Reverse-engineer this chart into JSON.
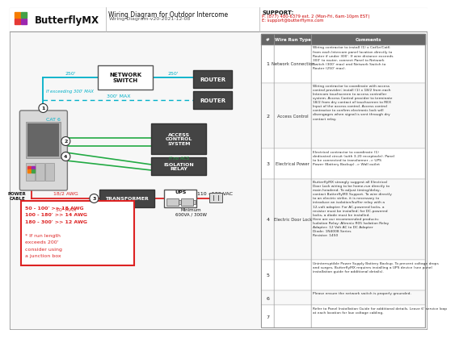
{
  "title": "Wiring Diagram for Outdoor Intercome",
  "subtitle": "Wiring-Diagram-v20-2021-12-08",
  "support_label": "SUPPORT:",
  "support_phone": "P: (877) 480-6379 ext. 2 (Mon-Fri, 6am-10pm EST)",
  "support_email": "E: support@butterflymx.com",
  "bg_color": "#ffffff",
  "cyan": "#00b0c8",
  "green": "#22aa44",
  "red": "#dd2222",
  "dark": "#333333",
  "gray_box": "#555555",
  "light_gray": "#f0f0f0",
  "table_hdr_bg": "#666666",
  "wire_run_rows": [
    {
      "num": "1",
      "type": "Network Connection",
      "comment": "Wiring contractor to install (1) x Cat5e/Cat6\nfrom each Intercom panel location directly to\nRouter if under 300'. If wire distance exceeds\n300' to router, connect Panel to Network\nSwitch (300' max) and Network Switch to\nRouter (250' max)."
    },
    {
      "num": "2",
      "type": "Access Control",
      "comment": "Wiring contractor to coordinate with access\ncontrol provider; install (1) x 18/2 from each\nIntercom touchscreen to access controller\nsystem. Access Control provider to terminate\n18/2 from dry contact of touchscreen to REX\nInput of the access control. Access control\ncontractor to confirm electronic lock will\ndisengages when signal is sent through dry\ncontact relay."
    },
    {
      "num": "3",
      "type": "Electrical Power",
      "comment": "Electrical contractor to coordinate (1)\ndedicated circuit (with 3-20 receptacle). Panel\nto be connected to transformer -> UPS\nPower (Battery Backup) -> Wall outlet"
    },
    {
      "num": "4",
      "type": "Electric Door Lock",
      "comment": "ButterflyMX strongly suggest all Electrical\nDoor Lock wiring to be home-run directly to\nmain headend. To adjust timing/delay,\ncontact ButterflyMX Support. To wire directly\nto an electric strike, it is necessary to\nintroduce an isolation/buffer relay with a\n12-volt adapter. For AC-powered locks, a\nresistor must be installed; for DC-powered\nlocks, a diode must be installed.\nHere are our recommended products:\nIsolation Relay: Altronix R05 Isolation Relay\nAdapter: 12 Volt AC to DC Adapter\nDiode: 1N4008 Series\nResistor: 1450"
    },
    {
      "num": "5",
      "type": "",
      "comment": "Uninterruptible Power Supply Battery Backup. To prevent voltage drops\nand surges, ButterflyMX requires installing a UPS device (see panel\ninstallation guide for additional details)."
    },
    {
      "num": "6",
      "type": "",
      "comment": "Please ensure the network switch is properly grounded."
    },
    {
      "num": "7",
      "type": "",
      "comment": "Refer to Panel Installation Guide for additional details. Leave 6' service loop\nat each location for low voltage cabling."
    }
  ]
}
